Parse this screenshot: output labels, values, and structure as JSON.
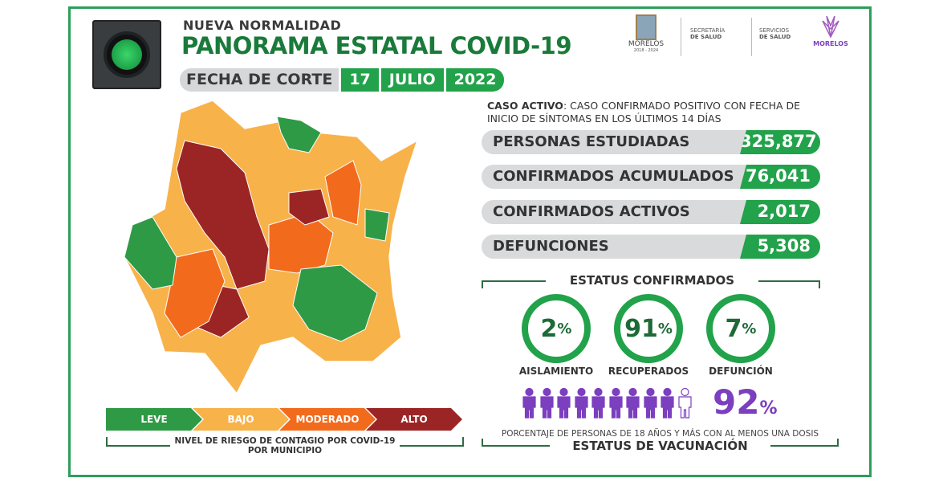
{
  "header": {
    "supertitle": "NUEVA NORMALIDAD",
    "title": "PANORAMA ESTATAL COVID-19",
    "date_label": "FECHA DE CORTE",
    "day": "17",
    "month": "JULIO",
    "year": "2022",
    "traffic_light_icon": "green-traffic-light-icon"
  },
  "logos": {
    "morelos_gov": "MORELOS",
    "morelos_years": "2018 - 2024",
    "secretaria_1": "SECRETARÍA",
    "secretaria_2": "DE SALUD",
    "servicios_1": "SERVICIOS",
    "servicios_2": "DE SALUD",
    "morelos_brand": "MORELOS"
  },
  "definition": {
    "term": "CASO ACTIVO",
    "text": ": CASO CONFIRMADO POSITIVO CON FECHA DE INICIO DE SÍNTOMAS EN LOS ÚLTIMOS 14 DÍAS"
  },
  "stats": [
    {
      "label": "PERSONAS ESTUDIADAS",
      "value": "325,877"
    },
    {
      "label": "CONFIRMADOS ACUMULADOS",
      "value": "76,041"
    },
    {
      "label": "CONFIRMADOS ACTIVOS",
      "value": "2,017"
    },
    {
      "label": "DEFUNCIONES",
      "value": "5,308"
    }
  ],
  "status": {
    "title": "ESTATUS CONFIRMADOS",
    "items": [
      {
        "value": "2",
        "unit": "%",
        "label": "AISLAMIENTO"
      },
      {
        "value": "91",
        "unit": "%",
        "label": "RECUPERADOS"
      },
      {
        "value": "7",
        "unit": "%",
        "label": "DEFUNCIÓN"
      }
    ]
  },
  "vaccination": {
    "value": "92",
    "unit": "%",
    "filled_people": 9,
    "total_people": 10,
    "caption": "PORCENTAJE DE PERSONAS DE 18 AÑOS Y MÁS CON AL MENOS UNA DOSIS",
    "title": "ESTATUS DE VACUNACIÓN",
    "color": "#7b3fbf"
  },
  "legend": {
    "items": [
      {
        "label": "LEVE",
        "color": "#2f9a45"
      },
      {
        "label": "BAJO",
        "color": "#f8b24a"
      },
      {
        "label": "MODERADO",
        "color": "#f26b1d"
      },
      {
        "label": "ALTO",
        "color": "#9b2525"
      }
    ],
    "caption_1": "NIVEL DE RIESGO DE CONTAGIO POR ",
    "caption_bold": "COVID-19",
    "caption_2": "POR MUNICIPIO"
  }
}
